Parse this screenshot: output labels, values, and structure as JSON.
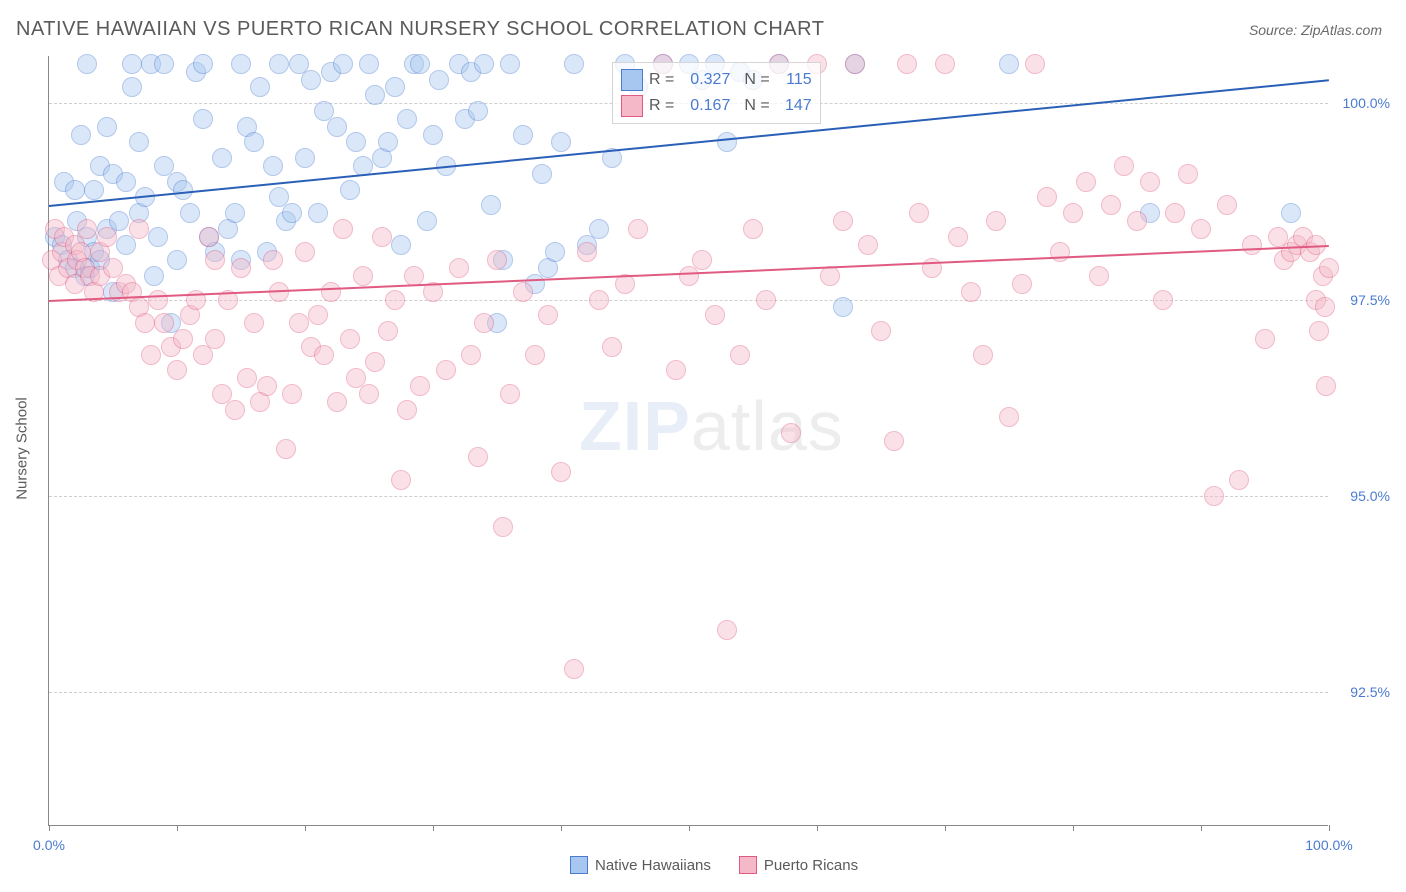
{
  "header": {
    "title": "NATIVE HAWAIIAN VS PUERTO RICAN NURSERY SCHOOL CORRELATION CHART",
    "source": "Source: ZipAtlas.com"
  },
  "chart": {
    "type": "scatter",
    "ylabel": "Nursery School",
    "xlim": [
      0,
      100
    ],
    "ylim": [
      90.8,
      100.6
    ],
    "background_color": "#ffffff",
    "grid_color": "#cfcfcf",
    "axis_color": "#888888",
    "tick_label_color": "#4a7bd0",
    "y_gridlines": [
      92.5,
      95.0,
      97.5,
      100.0
    ],
    "y_tick_labels": [
      "92.5%",
      "95.0%",
      "97.5%",
      "100.0%"
    ],
    "x_ticks": [
      0,
      10,
      20,
      30,
      40,
      50,
      60,
      70,
      80,
      90,
      100
    ],
    "x_tick_labels": {
      "0": "0.0%",
      "100": "100.0%"
    },
    "marker_radius": 10,
    "marker_opacity": 0.42,
    "series": [
      {
        "name": "Native Hawaiians",
        "color_fill": "#a7c7f0",
        "color_stroke": "#4a7bd0",
        "trend": {
          "color": "#2a5fb8",
          "width": 2,
          "y_at_x0": 98.7,
          "y_at_x100": 100.3
        },
        "R": "0.327",
        "N": "115",
        "points": [
          [
            0.5,
            98.3
          ],
          [
            1,
            98.2
          ],
          [
            1.2,
            99.0
          ],
          [
            1.5,
            98.0
          ],
          [
            2,
            97.9
          ],
          [
            2,
            98.9
          ],
          [
            2.2,
            98.5
          ],
          [
            2.5,
            99.6
          ],
          [
            2.8,
            97.8
          ],
          [
            3,
            98.3
          ],
          [
            3,
            100.5
          ],
          [
            3.2,
            97.9
          ],
          [
            3.5,
            98.1
          ],
          [
            3.5,
            98.9
          ],
          [
            4,
            99.2
          ],
          [
            4,
            98.0
          ],
          [
            4.5,
            98.4
          ],
          [
            4.5,
            99.7
          ],
          [
            5,
            99.1
          ],
          [
            5,
            97.6
          ],
          [
            5.5,
            98.5
          ],
          [
            6,
            99.0
          ],
          [
            6,
            98.2
          ],
          [
            6.5,
            100.5
          ],
          [
            6.5,
            100.2
          ],
          [
            7,
            99.5
          ],
          [
            7,
            98.6
          ],
          [
            7.5,
            98.8
          ],
          [
            8,
            100.5
          ],
          [
            8.2,
            97.8
          ],
          [
            8.5,
            98.3
          ],
          [
            9,
            100.5
          ],
          [
            9,
            99.2
          ],
          [
            9.5,
            97.2
          ],
          [
            10,
            98.0
          ],
          [
            10,
            99.0
          ],
          [
            10.5,
            98.9
          ],
          [
            11,
            98.6
          ],
          [
            11.5,
            100.4
          ],
          [
            12,
            100.5
          ],
          [
            12,
            99.8
          ],
          [
            12.5,
            98.3
          ],
          [
            13,
            98.1
          ],
          [
            13.5,
            99.3
          ],
          [
            14,
            98.4
          ],
          [
            14.5,
            98.6
          ],
          [
            15,
            100.5
          ],
          [
            15,
            98.0
          ],
          [
            15.5,
            99.7
          ],
          [
            16,
            99.5
          ],
          [
            16.5,
            100.2
          ],
          [
            17,
            98.1
          ],
          [
            17.5,
            99.2
          ],
          [
            18,
            100.5
          ],
          [
            18,
            98.8
          ],
          [
            18.5,
            98.5
          ],
          [
            19,
            98.6
          ],
          [
            19.5,
            100.5
          ],
          [
            20,
            99.3
          ],
          [
            20.5,
            100.3
          ],
          [
            21,
            98.6
          ],
          [
            21.5,
            99.9
          ],
          [
            22,
            100.4
          ],
          [
            22.5,
            99.7
          ],
          [
            23,
            100.5
          ],
          [
            23.5,
            98.9
          ],
          [
            24,
            99.5
          ],
          [
            24.5,
            99.2
          ],
          [
            25,
            100.5
          ],
          [
            25.5,
            100.1
          ],
          [
            26,
            99.3
          ],
          [
            26.5,
            99.5
          ],
          [
            27,
            100.2
          ],
          [
            27.5,
            98.2
          ],
          [
            28,
            99.8
          ],
          [
            28.5,
            100.5
          ],
          [
            29,
            100.5
          ],
          [
            29.5,
            98.5
          ],
          [
            30,
            99.6
          ],
          [
            30.5,
            100.3
          ],
          [
            31,
            99.2
          ],
          [
            32,
            100.5
          ],
          [
            32.5,
            99.8
          ],
          [
            33,
            100.4
          ],
          [
            33.5,
            99.9
          ],
          [
            34,
            100.5
          ],
          [
            34.5,
            98.7
          ],
          [
            35,
            97.2
          ],
          [
            35.5,
            98.0
          ],
          [
            36,
            100.5
          ],
          [
            37,
            99.6
          ],
          [
            38,
            97.7
          ],
          [
            38.5,
            99.1
          ],
          [
            39,
            97.9
          ],
          [
            39.5,
            98.1
          ],
          [
            40,
            99.5
          ],
          [
            41,
            100.5
          ],
          [
            42,
            98.2
          ],
          [
            43,
            98.4
          ],
          [
            44,
            99.3
          ],
          [
            45,
            100.5
          ],
          [
            46,
            100.2
          ],
          [
            48,
            100.5
          ],
          [
            50,
            100.5
          ],
          [
            51,
            100.3
          ],
          [
            52,
            100.5
          ],
          [
            53,
            99.5
          ],
          [
            54,
            100.4
          ],
          [
            55,
            100.3
          ],
          [
            57,
            100.5
          ],
          [
            62,
            97.4
          ],
          [
            63,
            100.5
          ],
          [
            75,
            100.5
          ],
          [
            86,
            98.6
          ],
          [
            97,
            98.6
          ]
        ]
      },
      {
        "name": "Puerto Ricans",
        "color_fill": "#f5b8c8",
        "color_stroke": "#e05a82",
        "trend": {
          "color": "#e05a82",
          "width": 2,
          "y_at_x0": 97.5,
          "y_at_x100": 98.2
        },
        "R": "0.167",
        "N": "147",
        "points": [
          [
            0.2,
            98.0
          ],
          [
            0.5,
            98.4
          ],
          [
            0.8,
            97.8
          ],
          [
            1,
            98.1
          ],
          [
            1.2,
            98.3
          ],
          [
            1.5,
            97.9
          ],
          [
            2,
            98.2
          ],
          [
            2,
            97.7
          ],
          [
            2.2,
            98.0
          ],
          [
            2.5,
            98.1
          ],
          [
            2.8,
            97.9
          ],
          [
            3,
            98.4
          ],
          [
            3.2,
            97.8
          ],
          [
            3.5,
            97.6
          ],
          [
            4,
            98.1
          ],
          [
            4,
            97.8
          ],
          [
            4.5,
            98.3
          ],
          [
            5,
            97.9
          ],
          [
            5.5,
            97.6
          ],
          [
            6,
            97.7
          ],
          [
            6.5,
            97.6
          ],
          [
            7,
            98.4
          ],
          [
            7,
            97.4
          ],
          [
            7.5,
            97.2
          ],
          [
            8,
            96.8
          ],
          [
            8.5,
            97.5
          ],
          [
            9,
            97.2
          ],
          [
            9.5,
            96.9
          ],
          [
            10,
            96.6
          ],
          [
            10.5,
            97.0
          ],
          [
            11,
            97.3
          ],
          [
            11.5,
            97.5
          ],
          [
            12,
            96.8
          ],
          [
            12.5,
            98.3
          ],
          [
            13,
            98.0
          ],
          [
            13,
            97.0
          ],
          [
            13.5,
            96.3
          ],
          [
            14,
            97.5
          ],
          [
            14.5,
            96.1
          ],
          [
            15,
            97.9
          ],
          [
            15.5,
            96.5
          ],
          [
            16,
            97.2
          ],
          [
            16.5,
            96.2
          ],
          [
            17,
            96.4
          ],
          [
            17.5,
            98.0
          ],
          [
            18,
            97.6
          ],
          [
            18.5,
            95.6
          ],
          [
            19,
            96.3
          ],
          [
            19.5,
            97.2
          ],
          [
            20,
            98.1
          ],
          [
            20.5,
            96.9
          ],
          [
            21,
            97.3
          ],
          [
            21.5,
            96.8
          ],
          [
            22,
            97.6
          ],
          [
            22.5,
            96.2
          ],
          [
            23,
            98.4
          ],
          [
            23.5,
            97.0
          ],
          [
            24,
            96.5
          ],
          [
            24.5,
            97.8
          ],
          [
            25,
            96.3
          ],
          [
            25.5,
            96.7
          ],
          [
            26,
            98.3
          ],
          [
            26.5,
            97.1
          ],
          [
            27,
            97.5
          ],
          [
            27.5,
            95.2
          ],
          [
            28,
            96.1
          ],
          [
            28.5,
            97.8
          ],
          [
            29,
            96.4
          ],
          [
            30,
            97.6
          ],
          [
            31,
            96.6
          ],
          [
            32,
            97.9
          ],
          [
            33,
            96.8
          ],
          [
            33.5,
            95.5
          ],
          [
            34,
            97.2
          ],
          [
            35,
            98.0
          ],
          [
            35.5,
            94.6
          ],
          [
            36,
            96.3
          ],
          [
            37,
            97.6
          ],
          [
            38,
            96.8
          ],
          [
            39,
            97.3
          ],
          [
            40,
            95.3
          ],
          [
            41,
            92.8
          ],
          [
            42,
            98.1
          ],
          [
            43,
            97.5
          ],
          [
            44,
            96.9
          ],
          [
            45,
            97.7
          ],
          [
            46,
            98.4
          ],
          [
            48,
            100.5
          ],
          [
            49,
            96.6
          ],
          [
            50,
            97.8
          ],
          [
            51,
            98.0
          ],
          [
            52,
            97.3
          ],
          [
            53,
            93.3
          ],
          [
            54,
            96.8
          ],
          [
            55,
            98.4
          ],
          [
            56,
            97.5
          ],
          [
            57,
            100.5
          ],
          [
            58,
            95.8
          ],
          [
            60,
            100.5
          ],
          [
            61,
            97.8
          ],
          [
            62,
            98.5
          ],
          [
            63,
            100.5
          ],
          [
            64,
            98.2
          ],
          [
            65,
            97.1
          ],
          [
            66,
            95.7
          ],
          [
            67,
            100.5
          ],
          [
            68,
            98.6
          ],
          [
            69,
            97.9
          ],
          [
            70,
            100.5
          ],
          [
            71,
            98.3
          ],
          [
            72,
            97.6
          ],
          [
            73,
            96.8
          ],
          [
            74,
            98.5
          ],
          [
            75,
            96.0
          ],
          [
            76,
            97.7
          ],
          [
            77,
            100.5
          ],
          [
            78,
            98.8
          ],
          [
            79,
            98.1
          ],
          [
            80,
            98.6
          ],
          [
            81,
            99.0
          ],
          [
            82,
            97.8
          ],
          [
            83,
            98.7
          ],
          [
            84,
            99.2
          ],
          [
            85,
            98.5
          ],
          [
            86,
            99.0
          ],
          [
            87,
            97.5
          ],
          [
            88,
            98.6
          ],
          [
            89,
            99.1
          ],
          [
            90,
            98.4
          ],
          [
            91,
            95.0
          ],
          [
            92,
            98.7
          ],
          [
            93,
            95.2
          ],
          [
            94,
            98.2
          ],
          [
            95,
            97.0
          ],
          [
            96,
            98.3
          ],
          [
            96.5,
            98.0
          ],
          [
            97,
            98.1
          ],
          [
            97.5,
            98.2
          ],
          [
            98,
            98.3
          ],
          [
            98.5,
            98.1
          ],
          [
            99,
            98.2
          ],
          [
            99,
            97.5
          ],
          [
            99.2,
            97.1
          ],
          [
            99.5,
            97.8
          ],
          [
            99.7,
            97.4
          ],
          [
            99.8,
            96.4
          ],
          [
            100,
            97.9
          ]
        ]
      }
    ]
  },
  "legend": {
    "items": [
      {
        "label": "Native Hawaiians",
        "fill": "#a7c7f0",
        "stroke": "#4a7bd0"
      },
      {
        "label": "Puerto Ricans",
        "fill": "#f5b8c8",
        "stroke": "#e05a82"
      }
    ]
  },
  "watermark": {
    "part1": "ZIP",
    "part2": "atlas"
  }
}
